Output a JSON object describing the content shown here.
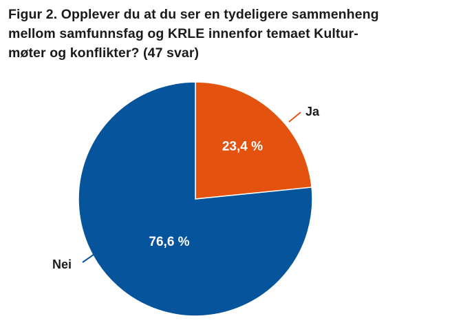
{
  "title_lines": [
    "Figur 2. Opplever du at du ser en tydeligere sammenheng",
    "mellom samfunnsfag og KRLE innenfor temaet Kultur-",
    "møter og konflikter? (47 svar)"
  ],
  "chart_data": {
    "type": "pie",
    "title": "Figur 2. Opplever du at du ser en tydeligere sammenheng mellom samfunnsfag og KRLE innenfor temaet Kultur-møter og konflikter? (47 svar)",
    "slices": [
      {
        "label": "Ja",
        "value": 23.4,
        "value_label": "23,4 %",
        "color": "#e3530f"
      },
      {
        "label": "Nei",
        "value": 76.6,
        "value_label": "76,6 %",
        "color": "#06559c"
      }
    ],
    "start": "12 o'clock",
    "direction": "clockwise",
    "legend": "none",
    "labels": "outside with leader lines"
  }
}
